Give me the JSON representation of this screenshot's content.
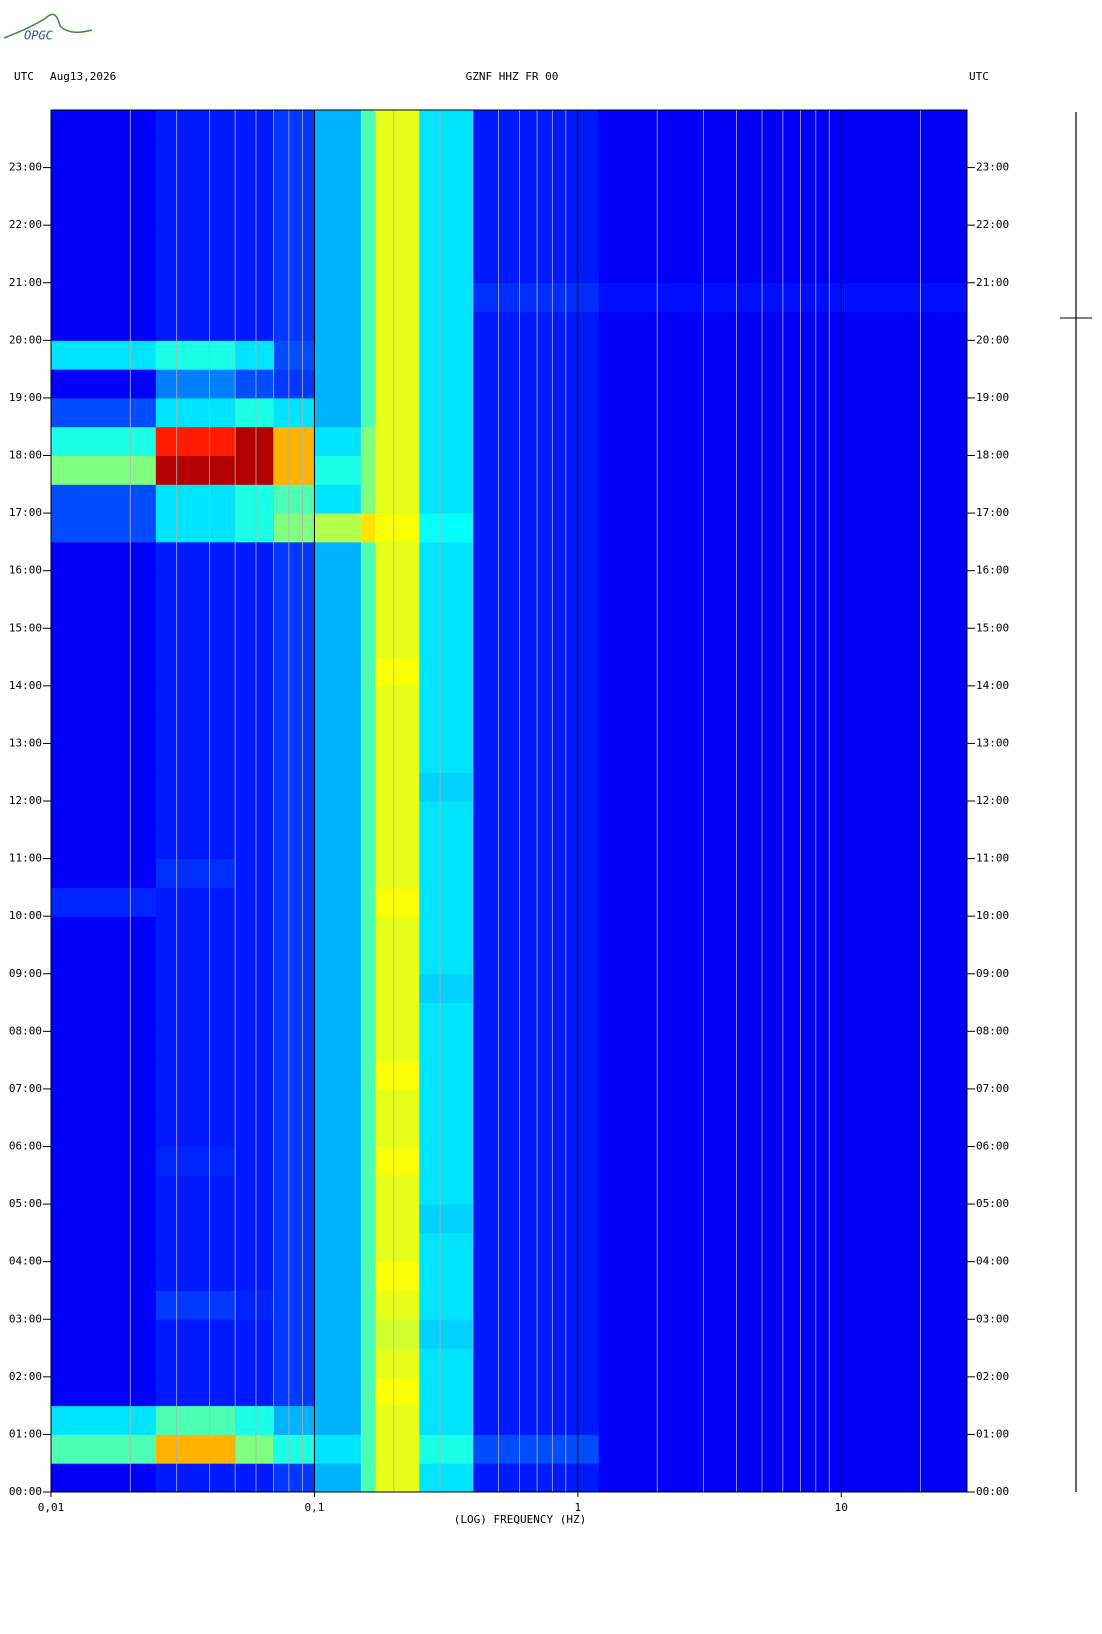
{
  "chart_data": {
    "type": "spectrogram",
    "logo": "OPGC",
    "header_left": "UTC",
    "date": "Aug13,2026",
    "title": "GZNF HHZ FR 00",
    "header_right": "UTC",
    "xlabel": "(LOG) FREQUENCY (HZ)",
    "xlog": true,
    "xlim": [
      0.01,
      30
    ],
    "ylim": [
      0,
      24
    ],
    "xticks": [
      {
        "value": 0.01,
        "label": "0,01"
      },
      {
        "value": 0.1,
        "label": "0,1"
      },
      1,
      10
    ],
    "xgrid": [
      0.02,
      0.03,
      0.04,
      0.05,
      0.06,
      0.07,
      0.08,
      0.09,
      0.2,
      0.3,
      0.4,
      0.5,
      0.6,
      0.7,
      0.8,
      0.9,
      2,
      3,
      4,
      5,
      6,
      7,
      8,
      9,
      20
    ],
    "yticks": [
      {
        "value": 0,
        "label": "00:00"
      },
      {
        "value": 1,
        "label": "01:00"
      },
      {
        "value": 2,
        "label": "02:00"
      },
      {
        "value": 3,
        "label": "03:00"
      },
      {
        "value": 4,
        "label": "04:00"
      },
      {
        "value": 5,
        "label": "05:00"
      },
      {
        "value": 6,
        "label": "06:00"
      },
      {
        "value": 7,
        "label": "07:00"
      },
      {
        "value": 8,
        "label": "08:00"
      },
      {
        "value": 9,
        "label": "09:00"
      },
      {
        "value": 10,
        "label": "10:00"
      },
      {
        "value": 11,
        "label": "11:00"
      },
      {
        "value": 12,
        "label": "12:00"
      },
      {
        "value": 13,
        "label": "13:00"
      },
      {
        "value": 14,
        "label": "14:00"
      },
      {
        "value": 15,
        "label": "15:00"
      },
      {
        "value": 16,
        "label": "16:00"
      },
      {
        "value": 17,
        "label": "17:00"
      },
      {
        "value": 18,
        "label": "18:00"
      },
      {
        "value": 19,
        "label": "19:00"
      },
      {
        "value": 20,
        "label": "20:00"
      },
      {
        "value": 21,
        "label": "21:00"
      },
      {
        "value": 22,
        "label": "22:00"
      },
      {
        "value": 23,
        "label": "23:00"
      }
    ],
    "xbins": [
      0.01,
      0.025,
      0.05,
      0.07,
      0.1,
      0.15,
      0.17,
      0.25,
      0.4,
      1.2,
      30
    ],
    "ybins": [
      0,
      0.5,
      1,
      1.5,
      2,
      2.5,
      3,
      3.5,
      4,
      4.5,
      5,
      5.5,
      6,
      6.5,
      7,
      7.5,
      8,
      8.5,
      9,
      9.5,
      10,
      10.5,
      11,
      11.5,
      12,
      12.5,
      13,
      13.5,
      14,
      14.5,
      15,
      15.5,
      16,
      16.5,
      17,
      17.5,
      18,
      18.5,
      19,
      19.5,
      20,
      20.5,
      21,
      21.5,
      22,
      22.5,
      23,
      23.5,
      24
    ],
    "z": [
      [
        0.12,
        0.15,
        0.15,
        0.18,
        0.3,
        0.45,
        0.6,
        0.35,
        0.15,
        0.12
      ],
      [
        0.45,
        0.7,
        0.5,
        0.4,
        0.35,
        0.45,
        0.6,
        0.4,
        0.2,
        0.12
      ],
      [
        0.35,
        0.45,
        0.4,
        0.3,
        0.3,
        0.45,
        0.6,
        0.35,
        0.15,
        0.12
      ],
      [
        0.12,
        0.15,
        0.15,
        0.18,
        0.3,
        0.45,
        0.62,
        0.35,
        0.15,
        0.12
      ],
      [
        0.12,
        0.15,
        0.15,
        0.18,
        0.3,
        0.45,
        0.6,
        0.35,
        0.15,
        0.12
      ],
      [
        0.12,
        0.15,
        0.15,
        0.18,
        0.3,
        0.45,
        0.58,
        0.33,
        0.15,
        0.12
      ],
      [
        0.12,
        0.18,
        0.16,
        0.18,
        0.3,
        0.45,
        0.6,
        0.35,
        0.15,
        0.12
      ],
      [
        0.12,
        0.15,
        0.15,
        0.18,
        0.3,
        0.45,
        0.62,
        0.35,
        0.15,
        0.12
      ],
      [
        0.12,
        0.15,
        0.15,
        0.18,
        0.3,
        0.45,
        0.6,
        0.35,
        0.15,
        0.12
      ],
      [
        0.12,
        0.15,
        0.15,
        0.18,
        0.3,
        0.45,
        0.6,
        0.33,
        0.15,
        0.12
      ],
      [
        0.12,
        0.15,
        0.15,
        0.18,
        0.3,
        0.45,
        0.6,
        0.35,
        0.15,
        0.12
      ],
      [
        0.12,
        0.16,
        0.15,
        0.18,
        0.3,
        0.45,
        0.62,
        0.35,
        0.15,
        0.12
      ],
      [
        0.12,
        0.15,
        0.15,
        0.18,
        0.3,
        0.45,
        0.6,
        0.35,
        0.15,
        0.12
      ],
      [
        0.12,
        0.15,
        0.15,
        0.18,
        0.3,
        0.45,
        0.6,
        0.35,
        0.15,
        0.12
      ],
      [
        0.12,
        0.15,
        0.15,
        0.18,
        0.3,
        0.45,
        0.62,
        0.35,
        0.15,
        0.12
      ],
      [
        0.12,
        0.15,
        0.15,
        0.18,
        0.3,
        0.45,
        0.6,
        0.35,
        0.15,
        0.12
      ],
      [
        0.12,
        0.15,
        0.15,
        0.18,
        0.3,
        0.45,
        0.6,
        0.35,
        0.15,
        0.12
      ],
      [
        0.12,
        0.15,
        0.15,
        0.18,
        0.3,
        0.45,
        0.6,
        0.33,
        0.15,
        0.12
      ],
      [
        0.12,
        0.15,
        0.15,
        0.18,
        0.3,
        0.45,
        0.6,
        0.35,
        0.15,
        0.12
      ],
      [
        0.12,
        0.15,
        0.15,
        0.18,
        0.3,
        0.45,
        0.6,
        0.35,
        0.15,
        0.12
      ],
      [
        0.16,
        0.15,
        0.15,
        0.18,
        0.3,
        0.45,
        0.62,
        0.35,
        0.15,
        0.12
      ],
      [
        0.12,
        0.17,
        0.15,
        0.18,
        0.3,
        0.45,
        0.6,
        0.35,
        0.15,
        0.12
      ],
      [
        0.12,
        0.15,
        0.15,
        0.18,
        0.3,
        0.45,
        0.6,
        0.35,
        0.15,
        0.12
      ],
      [
        0.12,
        0.15,
        0.15,
        0.18,
        0.3,
        0.45,
        0.6,
        0.35,
        0.15,
        0.12
      ],
      [
        0.12,
        0.15,
        0.15,
        0.18,
        0.3,
        0.45,
        0.6,
        0.33,
        0.15,
        0.12
      ],
      [
        0.12,
        0.15,
        0.15,
        0.18,
        0.3,
        0.45,
        0.6,
        0.35,
        0.15,
        0.12
      ],
      [
        0.12,
        0.15,
        0.15,
        0.18,
        0.3,
        0.45,
        0.6,
        0.35,
        0.15,
        0.12
      ],
      [
        0.12,
        0.15,
        0.15,
        0.18,
        0.3,
        0.45,
        0.6,
        0.35,
        0.15,
        0.12
      ],
      [
        0.12,
        0.15,
        0.15,
        0.18,
        0.3,
        0.45,
        0.62,
        0.35,
        0.15,
        0.12
      ],
      [
        0.12,
        0.15,
        0.15,
        0.18,
        0.3,
        0.45,
        0.6,
        0.35,
        0.15,
        0.12
      ],
      [
        0.12,
        0.15,
        0.15,
        0.18,
        0.3,
        0.45,
        0.6,
        0.35,
        0.15,
        0.12
      ],
      [
        0.12,
        0.15,
        0.15,
        0.18,
        0.3,
        0.45,
        0.6,
        0.35,
        0.15,
        0.12
      ],
      [
        0.12,
        0.15,
        0.15,
        0.18,
        0.3,
        0.45,
        0.6,
        0.35,
        0.15,
        0.12
      ],
      [
        0.2,
        0.35,
        0.4,
        0.5,
        0.55,
        0.65,
        0.62,
        0.38,
        0.15,
        0.12
      ],
      [
        0.2,
        0.35,
        0.4,
        0.45,
        0.35,
        0.5,
        0.6,
        0.35,
        0.15,
        0.12
      ],
      [
        0.5,
        0.95,
        0.95,
        0.7,
        0.4,
        0.5,
        0.6,
        0.35,
        0.15,
        0.12
      ],
      [
        0.4,
        0.85,
        0.95,
        0.7,
        0.35,
        0.5,
        0.6,
        0.35,
        0.15,
        0.12
      ],
      [
        0.2,
        0.35,
        0.4,
        0.35,
        0.3,
        0.45,
        0.6,
        0.35,
        0.15,
        0.12
      ],
      [
        0.12,
        0.25,
        0.2,
        0.18,
        0.3,
        0.45,
        0.6,
        0.35,
        0.15,
        0.12
      ],
      [
        0.35,
        0.4,
        0.35,
        0.2,
        0.3,
        0.45,
        0.6,
        0.35,
        0.15,
        0.12
      ],
      [
        0.12,
        0.15,
        0.15,
        0.18,
        0.3,
        0.45,
        0.6,
        0.35,
        0.15,
        0.12
      ],
      [
        0.12,
        0.15,
        0.15,
        0.18,
        0.3,
        0.45,
        0.6,
        0.35,
        0.17,
        0.14
      ],
      [
        0.12,
        0.15,
        0.15,
        0.18,
        0.3,
        0.45,
        0.6,
        0.35,
        0.15,
        0.12
      ],
      [
        0.12,
        0.15,
        0.15,
        0.18,
        0.3,
        0.45,
        0.6,
        0.35,
        0.15,
        0.12
      ],
      [
        0.12,
        0.15,
        0.15,
        0.18,
        0.3,
        0.45,
        0.6,
        0.35,
        0.15,
        0.12
      ],
      [
        0.12,
        0.15,
        0.15,
        0.18,
        0.3,
        0.45,
        0.6,
        0.35,
        0.15,
        0.12
      ],
      [
        0.12,
        0.15,
        0.15,
        0.18,
        0.3,
        0.45,
        0.6,
        0.35,
        0.15,
        0.12
      ],
      [
        0.12,
        0.15,
        0.15,
        0.18,
        0.3,
        0.45,
        0.6,
        0.35,
        0.15,
        0.12
      ]
    ]
  }
}
